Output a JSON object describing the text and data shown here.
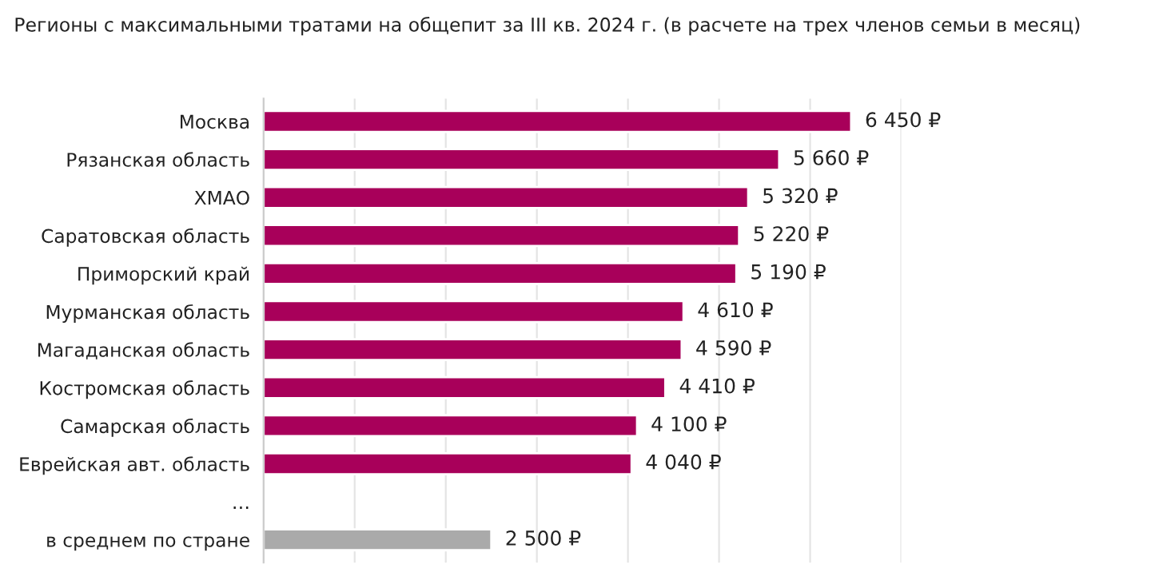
{
  "chart_data": {
    "type": "bar",
    "orientation": "horizontal",
    "title": "Регионы с максимальными тратами на общепит за III кв. 2024 г. (в расчете на трех членов семьи в месяц)",
    "categories": [
      "Москва",
      "Рязанская область",
      "ХМАО",
      "Саратовская область",
      "Приморский край",
      "Мурманская область",
      "Магаданская область",
      "Костромская область",
      "Самарская область",
      "Еврейская авт. область",
      "…",
      "в среднем по стране"
    ],
    "values": [
      6450,
      5660,
      5320,
      5220,
      5190,
      4610,
      4590,
      4410,
      4100,
      4040,
      null,
      2500
    ],
    "colors": [
      "#a8005a",
      "#a8005a",
      "#a8005a",
      "#a8005a",
      "#a8005a",
      "#a8005a",
      "#a8005a",
      "#a8005a",
      "#a8005a",
      "#a8005a",
      "#a8005a",
      "#aaaaaa"
    ],
    "value_labels": [
      "6 450 ₽",
      "5 660 ₽",
      "5 320 ₽",
      "5 220 ₽",
      "5 190 ₽",
      "4 610 ₽",
      "4 590 ₽",
      "4 410 ₽",
      "4 100 ₽",
      "4 040 ₽",
      null,
      "2 500 ₽"
    ],
    "xlim": [
      0,
      7000
    ],
    "xticks": [
      {
        "value": 0,
        "label": null
      },
      {
        "value": 1000,
        "label": null
      },
      {
        "value": 2000,
        "label": null
      },
      {
        "value": 3000,
        "label": null
      },
      {
        "value": 4000,
        "label": null
      },
      {
        "value": 5000,
        "label": null
      },
      {
        "value": 6000,
        "label": null
      },
      {
        "value": 7000,
        "label": null
      }
    ],
    "grid": "x",
    "tick_labels": "y",
    "legend": false
  }
}
